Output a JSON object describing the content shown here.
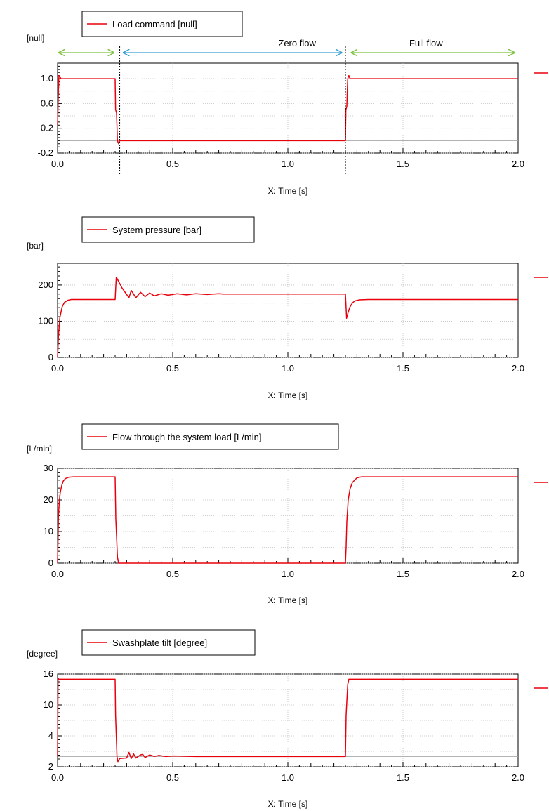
{
  "chart_data": [
    {
      "type": "line",
      "legend": "Load command [null]",
      "ylabel": "[null]",
      "xlabel": "X: Time [s]",
      "xlim": [
        0,
        2
      ],
      "ylim": [
        -0.2,
        1.25
      ],
      "y_ticks": [
        -0.2,
        0.2,
        0.6,
        1.0
      ],
      "y_tick_labels": [
        "-0.2",
        "0.2",
        "0.6",
        "1.0"
      ],
      "x_ticks": [
        0,
        0.5,
        1,
        1.5,
        2
      ],
      "x_tick_labels": [
        "0.0",
        "0.5",
        "1.0",
        "1.5",
        "2.0"
      ],
      "grid": true,
      "series": [
        {
          "color": "#e8000b",
          "x": [
            0,
            0.003,
            0.006,
            0.01,
            0.015,
            0.25,
            0.252,
            0.256,
            0.26,
            0.265,
            0.27,
            1.25,
            1.252,
            1.256,
            1.26,
            1.265,
            1.27,
            2.0
          ],
          "y": [
            0.25,
            0.7,
            1.05,
            1.03,
            1.0,
            1.0,
            0.5,
            0.45,
            0.0,
            -0.05,
            0.0,
            0.0,
            0.5,
            0.55,
            1.0,
            1.05,
            1.0,
            1.0
          ]
        }
      ],
      "annotations": {
        "markers_x": [
          0.27,
          1.25
        ],
        "labels": [
          "Zero flow",
          "Full flow"
        ],
        "arrows": [
          {
            "from": 0,
            "to": 0.25,
            "color": "#7dc242"
          },
          {
            "from": 0.28,
            "to": 1.24,
            "color": "#3aa0d0"
          },
          {
            "from": 1.27,
            "to": 1.99,
            "color": "#7dc242"
          }
        ]
      }
    },
    {
      "type": "line",
      "legend": "System pressure [bar]",
      "ylabel": "[bar]",
      "xlabel": "X: Time [s]",
      "xlim": [
        0,
        2
      ],
      "ylim": [
        0,
        260
      ],
      "y_ticks": [
        0,
        100,
        200
      ],
      "y_tick_labels": [
        "0",
        "100",
        "200"
      ],
      "x_ticks": [
        0,
        0.5,
        1,
        1.5,
        2
      ],
      "x_tick_labels": [
        "0.0",
        "0.5",
        "1.0",
        "1.5",
        "2.0"
      ],
      "grid": true,
      "series": [
        {
          "color": "#e8000b",
          "x": [
            0,
            0.004,
            0.01,
            0.02,
            0.03,
            0.045,
            0.06,
            0.25,
            0.255,
            0.265,
            0.28,
            0.31,
            0.32,
            0.34,
            0.36,
            0.38,
            0.4,
            0.42,
            0.45,
            0.48,
            0.52,
            0.56,
            0.6,
            0.65,
            0.7,
            0.72,
            0.75,
            1.25,
            1.255,
            1.262,
            1.27,
            1.28,
            1.29,
            1.31,
            1.35,
            2.0
          ],
          "y": [
            0,
            60,
            110,
            140,
            152,
            158,
            160,
            160,
            222,
            210,
            192,
            165,
            185,
            165,
            180,
            168,
            178,
            170,
            176,
            172,
            176,
            173,
            176,
            174,
            176,
            175,
            175,
            175,
            108,
            125,
            140,
            150,
            156,
            159,
            160,
            160
          ]
        }
      ]
    },
    {
      "type": "line",
      "legend": "Flow through the system load [L/min]",
      "ylabel": "[L/min]",
      "xlabel": "X: Time [s]",
      "xlim": [
        0,
        2
      ],
      "ylim": [
        0,
        30
      ],
      "y_ticks": [
        0,
        10,
        20,
        30
      ],
      "y_tick_labels": [
        "0",
        "10",
        "20",
        "30"
      ],
      "x_ticks": [
        0,
        0.5,
        1,
        1.5,
        2
      ],
      "x_tick_labels": [
        "0.0",
        "0.5",
        "1.0",
        "1.5",
        "2.0"
      ],
      "grid": true,
      "series": [
        {
          "color": "#e8000b",
          "x": [
            0,
            0.004,
            0.008,
            0.012,
            0.018,
            0.025,
            0.035,
            0.05,
            0.07,
            0.25,
            0.253,
            0.26,
            0.265,
            1.25,
            1.253,
            1.256,
            1.262,
            1.27,
            1.28,
            1.3,
            1.32,
            2.0
          ],
          "y": [
            0,
            15,
            20,
            22.5,
            24.5,
            26,
            26.8,
            27.2,
            27.3,
            27.3,
            14,
            2,
            0,
            0,
            5,
            13,
            20,
            23.5,
            25.5,
            27,
            27.3,
            27.3
          ]
        }
      ]
    },
    {
      "type": "line",
      "legend": "Swashplate tilt [degree]",
      "ylabel": "[degree]",
      "xlabel": "X: Time [s]",
      "xlim": [
        0,
        2
      ],
      "ylim": [
        -2,
        16
      ],
      "y_ticks": [
        -2,
        4,
        10,
        16
      ],
      "y_tick_labels": [
        "-2",
        "4",
        "10",
        "16"
      ],
      "x_ticks": [
        0,
        0.5,
        1,
        1.5,
        2
      ],
      "x_tick_labels": [
        "0.0",
        "0.5",
        "1.0",
        "1.5",
        "2.0"
      ],
      "grid": true,
      "series": [
        {
          "color": "#e8000b",
          "x": [
            0,
            0.002,
            0.004,
            0.006,
            0.25,
            0.252,
            0.258,
            0.262,
            0.27,
            0.3,
            0.31,
            0.32,
            0.33,
            0.34,
            0.36,
            0.37,
            0.38,
            0.4,
            0.42,
            0.44,
            0.47,
            0.5,
            0.55,
            0.6,
            1.25,
            1.253,
            1.26,
            1.265,
            2.0
          ],
          "y": [
            0,
            14.8,
            15.1,
            15,
            15,
            8,
            0,
            -1,
            -0.4,
            -0.3,
            0.8,
            -0.4,
            0.5,
            -0.3,
            0.3,
            0.4,
            -0.2,
            0.3,
            0,
            0.2,
            0,
            0.1,
            0.05,
            0,
            0,
            8,
            14,
            15,
            15
          ]
        }
      ]
    }
  ]
}
